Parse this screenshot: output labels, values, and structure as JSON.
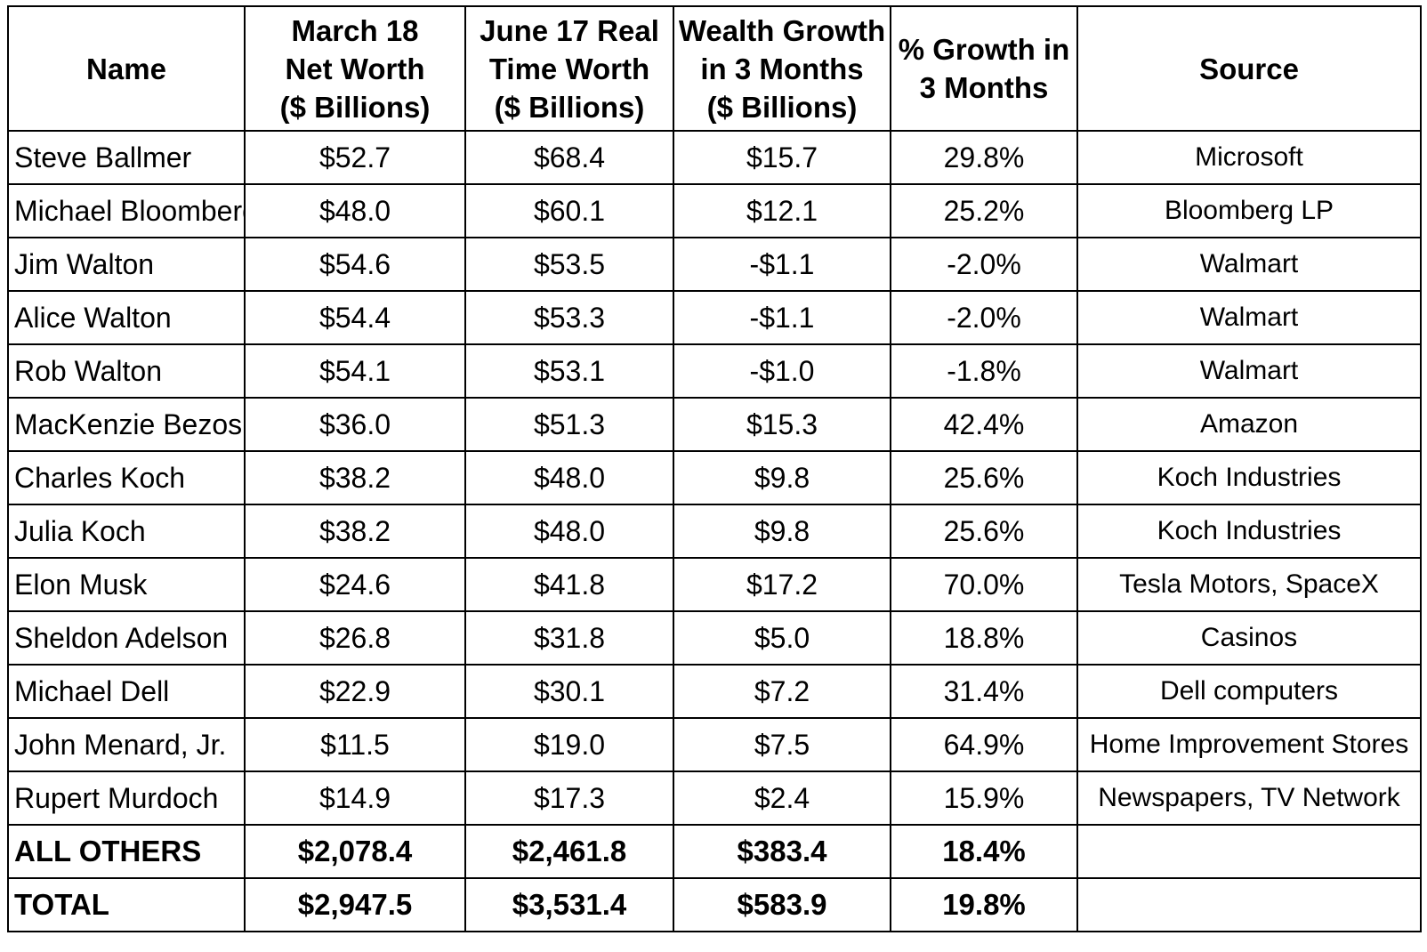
{
  "chart_data": {
    "type": "table",
    "columns": [
      [
        "Name"
      ],
      [
        "March 18",
        "Net Worth",
        "($ Billions)"
      ],
      [
        "June 17 Real",
        "Time Worth",
        "($ Billions)"
      ],
      [
        "Wealth Growth",
        "in 3 Months",
        "($ Billions)"
      ],
      [
        "% Growth in",
        "3 Months"
      ],
      [
        "Source"
      ]
    ],
    "rows": [
      {
        "name": "Steve Ballmer",
        "march": "$52.7",
        "june": "$68.4",
        "growth": "$15.7",
        "pct": "29.8%",
        "source": "Microsoft"
      },
      {
        "name": "Michael Bloomberg",
        "march": "$48.0",
        "june": "$60.1",
        "growth": "$12.1",
        "pct": "25.2%",
        "source": "Bloomberg LP"
      },
      {
        "name": "Jim Walton",
        "march": "$54.6",
        "june": "$53.5",
        "growth": "-$1.1",
        "pct": "-2.0%",
        "source": "Walmart"
      },
      {
        "name": "Alice Walton",
        "march": "$54.4",
        "june": "$53.3",
        "growth": "-$1.1",
        "pct": "-2.0%",
        "source": "Walmart"
      },
      {
        "name": "Rob Walton",
        "march": "$54.1",
        "june": "$53.1",
        "growth": "-$1.0",
        "pct": "-1.8%",
        "source": "Walmart"
      },
      {
        "name": "MacKenzie Bezos",
        "march": "$36.0",
        "june": "$51.3",
        "growth": "$15.3",
        "pct": "42.4%",
        "source": "Amazon"
      },
      {
        "name": "Charles Koch",
        "march": "$38.2",
        "june": "$48.0",
        "growth": "$9.8",
        "pct": "25.6%",
        "source": "Koch Industries"
      },
      {
        "name": "Julia Koch",
        "march": "$38.2",
        "june": "$48.0",
        "growth": "$9.8",
        "pct": "25.6%",
        "source": "Koch Industries"
      },
      {
        "name": "Elon Musk",
        "march": "$24.6",
        "june": "$41.8",
        "growth": "$17.2",
        "pct": "70.0%",
        "source": "Tesla Motors, SpaceX"
      },
      {
        "name": "Sheldon Adelson",
        "march": "$26.8",
        "june": "$31.8",
        "growth": "$5.0",
        "pct": "18.8%",
        "source": "Casinos"
      },
      {
        "name": "Michael Dell",
        "march": "$22.9",
        "june": "$30.1",
        "growth": "$7.2",
        "pct": "31.4%",
        "source": "Dell computers"
      },
      {
        "name": "John Menard, Jr.",
        "march": "$11.5",
        "june": "$19.0",
        "growth": "$7.5",
        "pct": "64.9%",
        "source": "Home Improvement Stores"
      },
      {
        "name": "Rupert Murdoch",
        "march": "$14.9",
        "june": "$17.3",
        "growth": "$2.4",
        "pct": "15.9%",
        "source": "Newspapers, TV Network"
      }
    ],
    "summary_rows": [
      {
        "name": "ALL OTHERS",
        "march": "$2,078.4",
        "june": "$2,461.8",
        "growth": "$383.4",
        "pct": "18.4%",
        "source": ""
      },
      {
        "name": "TOTAL",
        "march": "$2,947.5",
        "june": "$3,531.4",
        "growth": "$583.9",
        "pct": "19.8%",
        "source": ""
      }
    ]
  }
}
